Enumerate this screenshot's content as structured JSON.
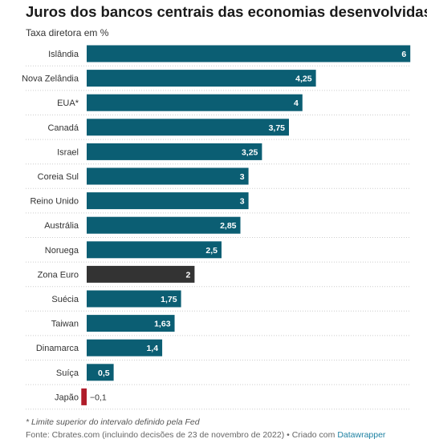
{
  "chart_data": {
    "type": "bar",
    "orientation": "horizontal",
    "title": "Juros dos bancos centrais das economias desenvolvidas",
    "subtitle": "Taxa diretora em %",
    "categories": [
      "Islândia",
      "Nova Zelândia",
      "EUA*",
      "Canadá",
      "Israel",
      "Coreia Sul",
      "Reino Unido",
      "Austrália",
      "Noruega",
      "Zona Euro",
      "Suécia",
      "Taiwan",
      "Dinamarca",
      "Suíça",
      "Japão"
    ],
    "values": [
      6,
      4.25,
      4,
      3.75,
      3.25,
      3,
      3,
      2.85,
      2.5,
      2,
      1.75,
      1.63,
      1.4,
      0.5,
      -0.1
    ],
    "value_labels": [
      "6",
      "4,25",
      "4",
      "3,75",
      "3,25",
      "3",
      "3",
      "2,85",
      "2,5",
      "2",
      "1,75",
      "1,63",
      "1,4",
      "0,5",
      "−0,1"
    ],
    "xlim": [
      -0.1,
      6
    ],
    "colors": {
      "default": "#0b5e73",
      "highlight": "#333333",
      "negative": "#b01c2a",
      "label_inside": "#ffffff",
      "label_outside": "#333333",
      "gridline": "#cccccc"
    },
    "highlight_category": "Zona Euro",
    "grid": true,
    "legend": "none"
  },
  "footnote": "* Limite superior do intervalo definido pela Fed",
  "source": {
    "prefix": "Fonte: Cbrates.com (incluindo decisões de 23 de novembro de 2022) • Criado com ",
    "link": "Datawrapper"
  }
}
